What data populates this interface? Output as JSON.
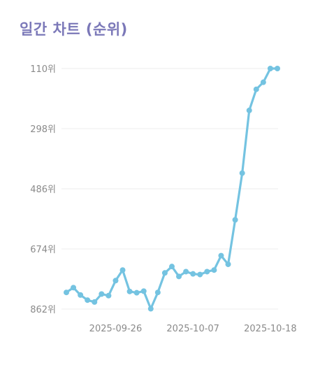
{
  "chart_data": {
    "type": "line",
    "title": "일간 차트 (순위)",
    "xlabel": "",
    "ylabel": "",
    "y_reversed": true,
    "ylim": [
      862,
      110
    ],
    "y_ticks": [
      {
        "value": 110,
        "label": "110위"
      },
      {
        "value": 298,
        "label": "298위"
      },
      {
        "value": 486,
        "label": "486위"
      },
      {
        "value": 674,
        "label": "674위"
      },
      {
        "value": 862,
        "label": "862위"
      }
    ],
    "x_ticks": [
      {
        "date": "2025-09-26",
        "label": "2025-09-26"
      },
      {
        "date": "2025-10-07",
        "label": "2025-10-07"
      },
      {
        "date": "2025-10-18",
        "label": "2025-10-18"
      }
    ],
    "x": [
      "2025-09-19",
      "2025-09-20",
      "2025-09-21",
      "2025-09-22",
      "2025-09-23",
      "2025-09-24",
      "2025-09-25",
      "2025-09-26",
      "2025-09-27",
      "2025-09-28",
      "2025-09-29",
      "2025-09-30",
      "2025-10-01",
      "2025-10-02",
      "2025-10-03",
      "2025-10-04",
      "2025-10-05",
      "2025-10-06",
      "2025-10-07",
      "2025-10-08",
      "2025-10-09",
      "2025-10-10",
      "2025-10-11",
      "2025-10-12",
      "2025-10-13",
      "2025-10-14",
      "2025-10-15",
      "2025-10-16",
      "2025-10-17",
      "2025-10-18",
      "2025-10-19"
    ],
    "series": [
      {
        "values": [
          810,
          795,
          818,
          834,
          840,
          815,
          820,
          773,
          740,
          807,
          811,
          806,
          861,
          810,
          749,
          729,
          760,
          745,
          752,
          754,
          745,
          740,
          695,
          722,
          583,
          437,
          241,
          175,
          153,
          110,
          110
        ],
        "color": "#74c3e1"
      }
    ],
    "grid": true,
    "legend": "none"
  }
}
